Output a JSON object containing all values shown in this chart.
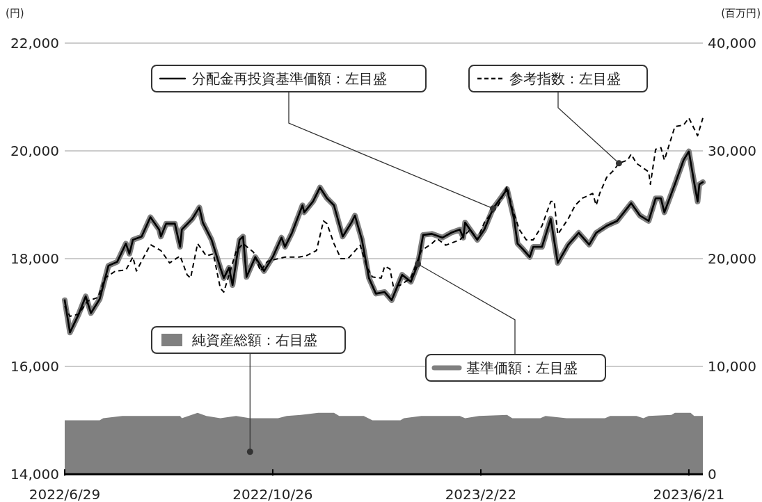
{
  "chart_data": {
    "type": "line",
    "ylabel": "(円)",
    "y2label": "(百万円)",
    "xlim": [
      "2022-06-29",
      "2023-06-29"
    ],
    "xticks": [
      {
        "value": "2022-06-29",
        "label": "2022/6/29"
      },
      {
        "value": "2022-10-26",
        "label": "2022/10/26"
      },
      {
        "value": "2023-02-22",
        "label": "2023/2/22"
      },
      {
        "value": "2023-06-21",
        "label": "2023/6/21"
      }
    ],
    "ylim": [
      14000,
      22000
    ],
    "yticks": [
      {
        "value": 14000,
        "label": "14,000"
      },
      {
        "value": 16000,
        "label": "16,000"
      },
      {
        "value": 18000,
        "label": "18,000"
      },
      {
        "value": 20000,
        "label": "20,000"
      },
      {
        "value": 22000,
        "label": "22,000"
      }
    ],
    "y2lim": [
      0,
      40000
    ],
    "y2ticks": [
      0,
      {
        "value": 10000,
        "label": "10,000"
      },
      {
        "value": 20000,
        "label": "20,000"
      },
      {
        "value": 30000,
        "label": "30,000"
      },
      {
        "value": 40000,
        "label": "40,000"
      }
    ],
    "grid": "y",
    "legend": "top",
    "series": [
      {
        "name": "純資産総額：右目盛",
        "type": "area",
        "axis": "y2",
        "color": "#808080",
        "x": [
          "2022-06-29",
          "2022-07-19",
          "2022-07-21",
          "2022-08-01",
          "2022-09-03",
          "2022-09-04",
          "2022-09-13",
          "2022-09-18",
          "2022-09-26",
          "2022-10-05",
          "2022-10-13",
          "2022-10-29",
          "2022-11-03",
          "2022-11-11",
          "2022-11-21",
          "2022-11-30",
          "2022-12-03",
          "2022-12-17",
          "2022-12-22",
          "2023-01-07",
          "2023-01-09",
          "2023-01-19",
          "2023-02-10",
          "2023-02-13",
          "2023-02-21",
          "2023-03-09",
          "2023-03-12",
          "2023-03-28",
          "2023-03-31",
          "2023-04-12",
          "2023-05-04",
          "2023-05-07",
          "2023-05-22",
          "2023-05-26",
          "2023-05-29",
          "2023-06-11",
          "2023-06-13",
          "2023-06-22",
          "2023-06-24",
          "2023-06-29"
        ],
        "values": [
          5000,
          5000,
          5200,
          5400,
          5400,
          5200,
          5700,
          5400,
          5200,
          5400,
          5200,
          5200,
          5400,
          5500,
          5700,
          5700,
          5400,
          5400,
          5000,
          5000,
          5200,
          5400,
          5400,
          5200,
          5400,
          5500,
          5200,
          5200,
          5400,
          5200,
          5200,
          5400,
          5400,
          5200,
          5400,
          5500,
          5700,
          5700,
          5400,
          5400
        ]
      },
      {
        "name": "基準価額：左目盛",
        "type": "line",
        "color": "#808080",
        "x": [
          "2022-06-29",
          "2022-07-02",
          "2022-07-07",
          "2022-07-11",
          "2022-07-14",
          "2022-07-19",
          "2022-07-24",
          "2022-07-29",
          "2022-08-03",
          "2022-08-05",
          "2022-08-07",
          "2022-08-12",
          "2022-08-17",
          "2022-08-22",
          "2022-08-23",
          "2022-08-26",
          "2022-08-31",
          "2022-09-03",
          "2022-09-04",
          "2022-09-10",
          "2022-09-14",
          "2022-09-16",
          "2022-09-21",
          "2022-09-26",
          "2022-09-28",
          "2022-10-01",
          "2022-10-03",
          "2022-10-07",
          "2022-10-09",
          "2022-10-11",
          "2022-10-16",
          "2022-10-21",
          "2022-10-26",
          "2022-10-31",
          "2022-11-02",
          "2022-11-06",
          "2022-11-12",
          "2022-11-13",
          "2022-11-18",
          "2022-11-22",
          "2022-11-26",
          "2022-11-30",
          "2022-12-05",
          "2022-12-10",
          "2022-12-12",
          "2022-12-16",
          "2022-12-20",
          "2022-12-24",
          "2022-12-29",
          "2023-01-02",
          "2023-01-08",
          "2023-01-13",
          "2023-01-17",
          "2023-01-20",
          "2023-01-25",
          "2023-01-31",
          "2023-02-05",
          "2023-02-10",
          "2023-02-12",
          "2023-02-13",
          "2023-02-20",
          "2023-02-24",
          "2023-03-01",
          "2023-03-06",
          "2023-03-09",
          "2023-03-13",
          "2023-03-15",
          "2023-03-18",
          "2023-03-22",
          "2023-03-24",
          "2023-03-29",
          "2023-04-03",
          "2023-04-07",
          "2023-04-13",
          "2023-04-19",
          "2023-04-25",
          "2023-04-29",
          "2023-05-05",
          "2023-05-11",
          "2023-05-19",
          "2023-05-24",
          "2023-05-29",
          "2023-06-02",
          "2023-06-05",
          "2023-06-07",
          "2023-06-13",
          "2023-06-18",
          "2023-06-21",
          "2023-06-24",
          "2023-06-26",
          "2023-06-27",
          "2023-06-29"
        ],
        "values": [
          17230,
          16630,
          16970,
          17300,
          16990,
          17250,
          17870,
          17940,
          18280,
          18090,
          18350,
          18410,
          18770,
          18540,
          18410,
          18650,
          18650,
          18220,
          18540,
          18740,
          18950,
          18670,
          18350,
          17830,
          17640,
          17830,
          17510,
          18350,
          18410,
          17660,
          18030,
          17770,
          18030,
          18390,
          18220,
          18480,
          18990,
          18860,
          19060,
          19320,
          19120,
          18990,
          18410,
          18670,
          18800,
          18350,
          17640,
          17350,
          17380,
          17230,
          17700,
          17570,
          17900,
          18440,
          18460,
          18390,
          18480,
          18540,
          18390,
          18670,
          18350,
          18540,
          18930,
          19150,
          19290,
          18740,
          18280,
          18180,
          18030,
          18220,
          18220,
          18740,
          17920,
          18260,
          18480,
          18260,
          18480,
          18610,
          18700,
          19030,
          18800,
          18700,
          19120,
          19120,
          18860,
          19380,
          19830,
          19990,
          19420,
          19060,
          19380,
          19420
        ]
      },
      {
        "name": "分配金再投資基準価額：左目盛",
        "type": "line",
        "color": "#000000",
        "x": [
          "2022-06-29",
          "2022-07-02",
          "2022-07-07",
          "2022-07-11",
          "2022-07-14",
          "2022-07-19",
          "2022-07-24",
          "2022-07-29",
          "2022-08-03",
          "2022-08-05",
          "2022-08-07",
          "2022-08-12",
          "2022-08-17",
          "2022-08-22",
          "2022-08-23",
          "2022-08-26",
          "2022-08-31",
          "2022-09-03",
          "2022-09-04",
          "2022-09-10",
          "2022-09-14",
          "2022-09-16",
          "2022-09-21",
          "2022-09-26",
          "2022-09-28",
          "2022-10-01",
          "2022-10-03",
          "2022-10-07",
          "2022-10-09",
          "2022-10-11",
          "2022-10-16",
          "2022-10-21",
          "2022-10-26",
          "2022-10-31",
          "2022-11-02",
          "2022-11-06",
          "2022-11-12",
          "2022-11-13",
          "2022-11-18",
          "2022-11-22",
          "2022-11-26",
          "2022-11-30",
          "2022-12-05",
          "2022-12-10",
          "2022-12-12",
          "2022-12-16",
          "2022-12-20",
          "2022-12-24",
          "2022-12-29",
          "2023-01-02",
          "2023-01-08",
          "2023-01-13",
          "2023-01-17",
          "2023-01-20",
          "2023-01-25",
          "2023-01-31",
          "2023-02-05",
          "2023-02-10",
          "2023-02-12",
          "2023-02-13",
          "2023-02-20",
          "2023-02-24",
          "2023-03-01",
          "2023-03-06",
          "2023-03-09",
          "2023-03-13",
          "2023-03-15",
          "2023-03-18",
          "2023-03-22",
          "2023-03-24",
          "2023-03-29",
          "2023-04-03",
          "2023-04-07",
          "2023-04-13",
          "2023-04-19",
          "2023-04-25",
          "2023-04-29",
          "2023-05-05",
          "2023-05-11",
          "2023-05-19",
          "2023-05-24",
          "2023-05-29",
          "2023-06-02",
          "2023-06-05",
          "2023-06-07",
          "2023-06-13",
          "2023-06-18",
          "2023-06-21",
          "2023-06-24",
          "2023-06-26",
          "2023-06-27",
          "2023-06-29"
        ],
        "values": [
          17230,
          16630,
          16970,
          17300,
          16990,
          17250,
          17870,
          17940,
          18280,
          18090,
          18350,
          18410,
          18770,
          18540,
          18410,
          18650,
          18650,
          18220,
          18540,
          18740,
          18950,
          18670,
          18350,
          17830,
          17640,
          17830,
          17510,
          18350,
          18410,
          17660,
          18030,
          17770,
          18030,
          18390,
          18220,
          18480,
          18990,
          18860,
          19060,
          19320,
          19120,
          18990,
          18410,
          18670,
          18800,
          18350,
          17640,
          17350,
          17380,
          17230,
          17700,
          17570,
          17900,
          18440,
          18460,
          18390,
          18480,
          18540,
          18390,
          18670,
          18350,
          18540,
          18930,
          19150,
          19290,
          18740,
          18280,
          18180,
          18030,
          18220,
          18220,
          18740,
          17920,
          18260,
          18480,
          18260,
          18480,
          18610,
          18700,
          19030,
          18800,
          18700,
          19120,
          19120,
          18860,
          19380,
          19830,
          19990,
          19420,
          19060,
          19380,
          19420
        ]
      },
      {
        "name": "参考指数：左目盛",
        "type": "line",
        "color": "#000000",
        "line_style": "dashed",
        "x": [
          "2022-06-29",
          "2022-07-02",
          "2022-07-07",
          "2022-07-12",
          "2022-07-18",
          "2022-07-22",
          "2022-07-28",
          "2022-08-03",
          "2022-08-07",
          "2022-08-09",
          "2022-08-17",
          "2022-08-23",
          "2022-08-28",
          "2022-09-03",
          "2022-09-07",
          "2022-09-09",
          "2022-09-13",
          "2022-09-18",
          "2022-09-22",
          "2022-09-26",
          "2022-09-28",
          "2022-10-01",
          "2022-10-05",
          "2022-10-09",
          "2022-10-15",
          "2022-10-19",
          "2022-10-23",
          "2022-11-02",
          "2022-11-10",
          "2022-11-14",
          "2022-11-20",
          "2022-11-24",
          "2022-11-26",
          "2022-11-30",
          "2022-12-04",
          "2022-12-08",
          "2022-12-15",
          "2022-12-19",
          "2022-12-22",
          "2022-12-27",
          "2022-12-29",
          "2023-01-01",
          "2023-01-03",
          "2023-01-07",
          "2023-01-13",
          "2023-01-19",
          "2023-01-25",
          "2023-01-28",
          "2023-02-02",
          "2023-02-10",
          "2023-02-16",
          "2023-02-20",
          "2023-02-24",
          "2023-02-27",
          "2023-03-04",
          "2023-03-09",
          "2023-03-12",
          "2023-03-16",
          "2023-03-20",
          "2023-03-24",
          "2023-03-29",
          "2023-04-03",
          "2023-04-05",
          "2023-04-07",
          "2023-04-13",
          "2023-04-17",
          "2023-04-21",
          "2023-04-27",
          "2023-04-29",
          "2023-05-01",
          "2023-05-05",
          "2023-05-09",
          "2023-05-12",
          "2023-05-17",
          "2023-05-19",
          "2023-05-22",
          "2023-05-29",
          "2023-05-30",
          "2023-06-02",
          "2023-06-05",
          "2023-06-07",
          "2023-06-13",
          "2023-06-18",
          "2023-06-21",
          "2023-06-23",
          "2023-06-26",
          "2023-06-29"
        ],
        "values": [
          17120,
          16930,
          16970,
          17210,
          17280,
          17640,
          17770,
          17790,
          18030,
          17770,
          18260,
          18150,
          17920,
          18050,
          17700,
          17640,
          18280,
          18050,
          18090,
          17450,
          17380,
          17700,
          18130,
          18280,
          18120,
          17770,
          17950,
          18030,
          18030,
          18050,
          18150,
          18700,
          18650,
          18280,
          18000,
          18000,
          18250,
          17830,
          17660,
          17640,
          17860,
          17810,
          17480,
          17510,
          17640,
          18150,
          18280,
          18370,
          18250,
          18350,
          18540,
          18350,
          18670,
          18800,
          18990,
          19340,
          18930,
          18540,
          18350,
          18350,
          18610,
          19060,
          19060,
          18450,
          18740,
          18990,
          19120,
          19210,
          18990,
          19210,
          19510,
          19640,
          19770,
          19830,
          19940,
          19770,
          19610,
          19380,
          20030,
          20060,
          19830,
          20450,
          20480,
          20610,
          20480,
          20280,
          20610
        ]
      }
    ]
  }
}
